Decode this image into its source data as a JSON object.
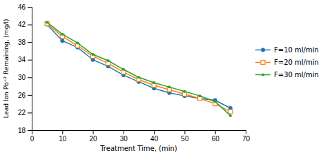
{
  "chart_data": {
    "type": "line",
    "x": [
      5,
      10,
      15,
      20,
      25,
      30,
      35,
      40,
      45,
      50,
      55,
      60,
      65
    ],
    "series": [
      {
        "name": "F=10 ml/min",
        "marker": "circle",
        "values": [
          42.0,
          38.3,
          36.8,
          34.0,
          32.5,
          30.5,
          29.0,
          27.5,
          26.5,
          25.8,
          25.2,
          24.8,
          23.0
        ]
      },
      {
        "name": "F=20 ml/min",
        "marker": "square",
        "values": [
          42.2,
          39.3,
          37.2,
          34.8,
          33.2,
          31.2,
          29.5,
          28.2,
          27.2,
          26.2,
          25.2,
          24.0,
          22.2
        ]
      },
      {
        "name": "F=30 ml/min",
        "marker": "point",
        "values": [
          42.5,
          39.8,
          37.8,
          35.2,
          33.8,
          31.8,
          30.0,
          28.8,
          27.8,
          26.8,
          25.8,
          24.5,
          21.3
        ]
      }
    ],
    "xlim": [
      0,
      70
    ],
    "ylim": [
      18,
      46
    ],
    "xticks": [
      0,
      10,
      20,
      30,
      40,
      50,
      60,
      70
    ],
    "yticks": [
      18,
      22,
      26,
      30,
      34,
      38,
      42,
      46
    ],
    "xlabel": "Treatment Time, (min)",
    "ylabel": "Lead Ion Pb⁺² Remaining, (mg/l)",
    "grid": false,
    "legend": "right"
  }
}
